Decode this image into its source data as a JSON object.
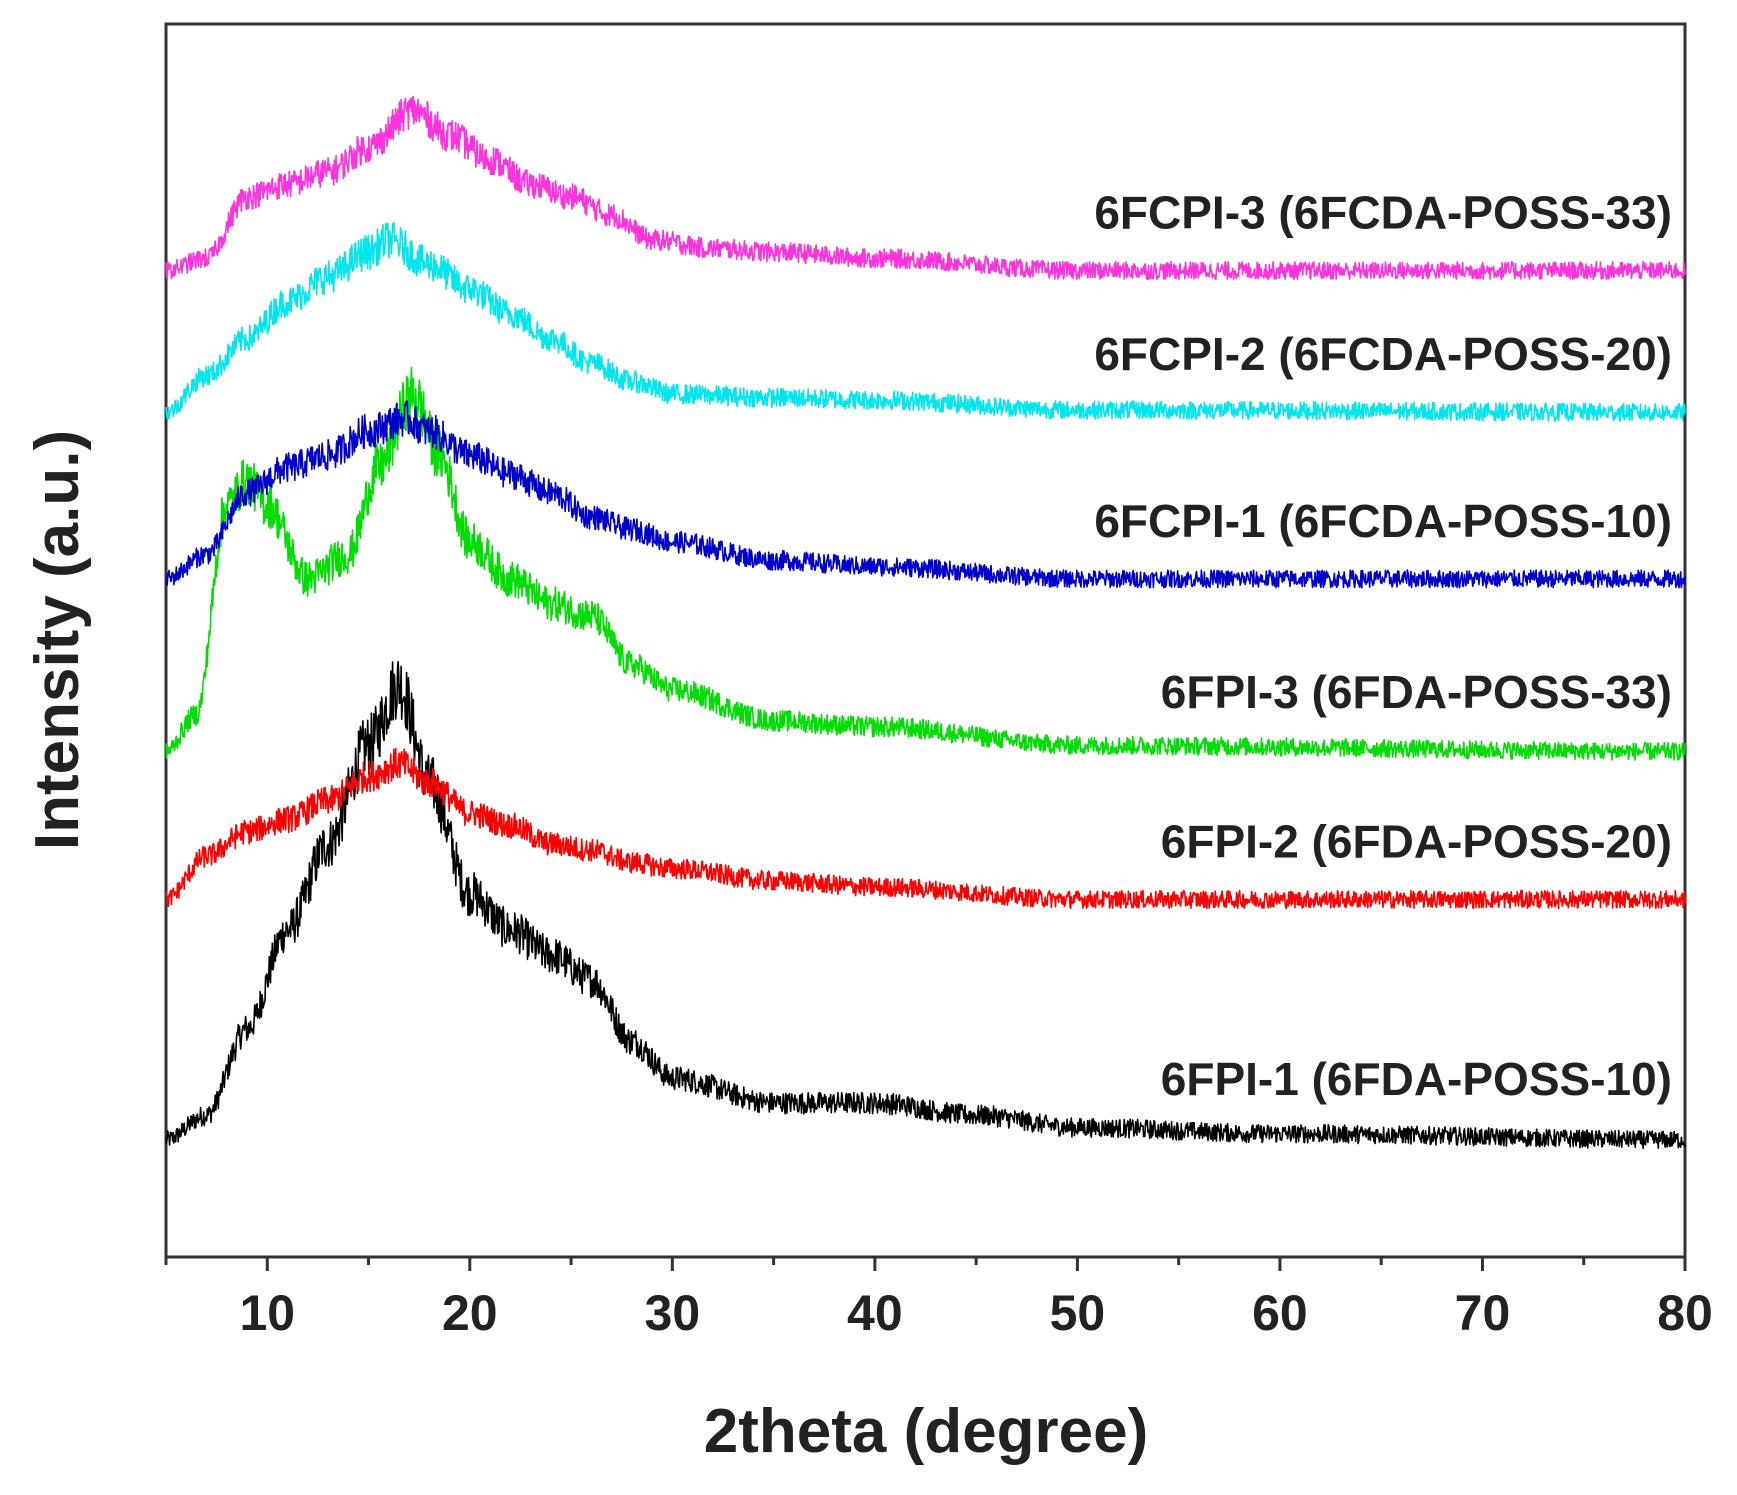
{
  "chart_data": {
    "type": "line",
    "title": "",
    "xlabel": "2theta (degree)",
    "ylabel": "Intensity (a.u.)",
    "xlim": [
      5,
      80
    ],
    "ylim": [
      0,
      1
    ],
    "x_ticks": [
      10,
      20,
      30,
      40,
      50,
      60,
      70,
      80
    ],
    "y_ticks_shown": false,
    "legend": "inline labels on right side of each trace",
    "grid": false,
    "series": [
      {
        "name": "6FPI-1 (6FDA-POSS-10)",
        "color": "#000000",
        "offset": 0.095,
        "points": [
          [
            5,
            0.0
          ],
          [
            7,
            0.02
          ],
          [
            9,
            0.09
          ],
          [
            11,
            0.17
          ],
          [
            13,
            0.24
          ],
          [
            15,
            0.32
          ],
          [
            16.5,
            0.37
          ],
          [
            18,
            0.29
          ],
          [
            20,
            0.2
          ],
          [
            22,
            0.17
          ],
          [
            24,
            0.15
          ],
          [
            26,
            0.13
          ],
          [
            28,
            0.08
          ],
          [
            30,
            0.05
          ],
          [
            35,
            0.03
          ],
          [
            40,
            0.03
          ],
          [
            45,
            0.02
          ],
          [
            50,
            0.01
          ],
          [
            60,
            0.005
          ],
          [
            80,
            0.0
          ]
        ],
        "noise": 0.012
      },
      {
        "name": "6FPI-2 (6FDA-POSS-20)",
        "color": "#ff0000",
        "offset": 0.29,
        "points": [
          [
            5,
            0.0
          ],
          [
            7,
            0.035
          ],
          [
            9,
            0.055
          ],
          [
            11,
            0.065
          ],
          [
            13,
            0.08
          ],
          [
            15,
            0.1
          ],
          [
            16.5,
            0.11
          ],
          [
            18,
            0.095
          ],
          [
            20,
            0.07
          ],
          [
            22,
            0.06
          ],
          [
            24,
            0.045
          ],
          [
            26,
            0.04
          ],
          [
            28,
            0.03
          ],
          [
            30,
            0.025
          ],
          [
            35,
            0.015
          ],
          [
            40,
            0.01
          ],
          [
            50,
            0.0
          ],
          [
            80,
            0.0
          ]
        ],
        "noise": 0.012
      },
      {
        "name": "6FPI-3 (6FDA-POSS-33)",
        "color": "#00dd00",
        "offset": 0.41,
        "points": [
          [
            5,
            0.0
          ],
          [
            6.5,
            0.03
          ],
          [
            8,
            0.2
          ],
          [
            9,
            0.22
          ],
          [
            10,
            0.2
          ],
          [
            12,
            0.14
          ],
          [
            14,
            0.16
          ],
          [
            15.5,
            0.23
          ],
          [
            17.2,
            0.29
          ],
          [
            18.5,
            0.24
          ],
          [
            20,
            0.17
          ],
          [
            22,
            0.14
          ],
          [
            24,
            0.12
          ],
          [
            26,
            0.11
          ],
          [
            28,
            0.07
          ],
          [
            30,
            0.05
          ],
          [
            35,
            0.025
          ],
          [
            40,
            0.02
          ],
          [
            50,
            0.005
          ],
          [
            80,
            0.0
          ]
        ],
        "noise": 0.012
      },
      {
        "name": "6FCPI-1 (6FCDA-POSS-10)",
        "color": "#0000cc",
        "offset": 0.55,
        "points": [
          [
            5,
            0.0
          ],
          [
            7,
            0.02
          ],
          [
            9,
            0.07
          ],
          [
            11,
            0.09
          ],
          [
            13,
            0.1
          ],
          [
            15,
            0.12
          ],
          [
            16.8,
            0.13
          ],
          [
            18,
            0.12
          ],
          [
            20,
            0.1
          ],
          [
            22,
            0.085
          ],
          [
            24,
            0.07
          ],
          [
            26,
            0.05
          ],
          [
            28,
            0.04
          ],
          [
            30,
            0.03
          ],
          [
            35,
            0.015
          ],
          [
            40,
            0.01
          ],
          [
            50,
            0.0
          ],
          [
            80,
            0.0
          ]
        ],
        "noise": 0.012
      },
      {
        "name": "6FCPI-2 (6FCDA-POSS-20)",
        "color": "#00e5ee",
        "offset": 0.685,
        "points": [
          [
            5,
            0.0
          ],
          [
            7,
            0.03
          ],
          [
            9,
            0.06
          ],
          [
            11,
            0.09
          ],
          [
            13,
            0.11
          ],
          [
            15,
            0.13
          ],
          [
            16,
            0.14
          ],
          [
            18,
            0.12
          ],
          [
            20,
            0.1
          ],
          [
            22,
            0.08
          ],
          [
            24,
            0.06
          ],
          [
            26,
            0.04
          ],
          [
            28,
            0.025
          ],
          [
            30,
            0.015
          ],
          [
            35,
            0.012
          ],
          [
            40,
            0.01
          ],
          [
            50,
            0.002
          ],
          [
            80,
            0.0
          ]
        ],
        "noise": 0.012
      },
      {
        "name": "6FCPI-3 (6FCDA-POSS-33)",
        "color": "#ff33dd",
        "offset": 0.8,
        "points": [
          [
            5,
            0.0
          ],
          [
            7,
            0.01
          ],
          [
            9,
            0.06
          ],
          [
            11,
            0.07
          ],
          [
            13,
            0.08
          ],
          [
            15,
            0.1
          ],
          [
            17.2,
            0.13
          ],
          [
            19,
            0.11
          ],
          [
            21,
            0.09
          ],
          [
            23,
            0.07
          ],
          [
            25,
            0.06
          ],
          [
            27,
            0.045
          ],
          [
            29,
            0.025
          ],
          [
            32,
            0.018
          ],
          [
            35,
            0.015
          ],
          [
            40,
            0.01
          ],
          [
            50,
            0.0
          ],
          [
            80,
            0.0
          ]
        ],
        "noise": 0.012
      }
    ]
  }
}
